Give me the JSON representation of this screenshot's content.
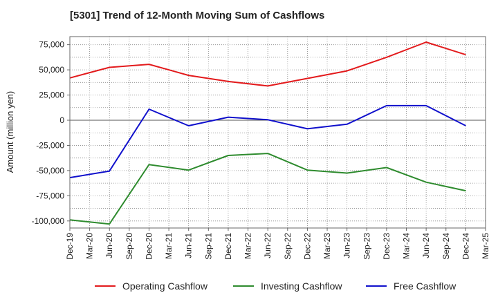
{
  "chart_data": {
    "type": "line",
    "title": "[5301]  Trend of 12-Month Moving Sum of Cashflows",
    "ylabel": "Amount (million yen)",
    "xlabel": "",
    "x": [
      "Dec-19",
      "Mar-20",
      "Jun-20",
      "Sep-20",
      "Dec-20",
      "Mar-21",
      "Jun-21",
      "Sep-21",
      "Dec-21",
      "Mar-22",
      "Jun-22",
      "Sep-22",
      "Dec-22",
      "Mar-23",
      "Jun-23",
      "Sep-23",
      "Dec-23",
      "Mar-24",
      "Jun-24",
      "Sep-24",
      "Dec-24",
      "Mar-25"
    ],
    "ylim": [
      -107000,
      83000
    ],
    "yticks": [
      75000,
      50000,
      25000,
      0,
      -25000,
      -50000,
      -75000,
      -100000
    ],
    "ytick_labels": [
      "75,000",
      "50,000",
      "25,000",
      "0",
      "-25,000",
      "-50,000",
      "-75,000",
      "-100,000"
    ],
    "grid": true,
    "legend_position": "bottom",
    "series": [
      {
        "name": "Operating Cashflow",
        "color": "#e31a1c",
        "x": [
          "Dec-19",
          "Jun-20",
          "Dec-20",
          "Jun-21",
          "Dec-21",
          "Jun-22",
          "Dec-22",
          "Jun-23",
          "Dec-23",
          "Jun-24",
          "Dec-24"
        ],
        "values": [
          42000,
          52500,
          55500,
          44500,
          38500,
          34000,
          41500,
          49000,
          62500,
          77500,
          65000
        ]
      },
      {
        "name": "Investing Cashflow",
        "color": "#2e8b2e",
        "x": [
          "Dec-19",
          "Jun-20",
          "Dec-20",
          "Jun-21",
          "Dec-21",
          "Jun-22",
          "Dec-22",
          "Jun-23",
          "Dec-23",
          "Jun-24",
          "Dec-24"
        ],
        "values": [
          -99000,
          -103000,
          -44000,
          -49500,
          -35000,
          -33000,
          -49500,
          -52500,
          -47000,
          -61500,
          -70000
        ]
      },
      {
        "name": "Free Cashflow",
        "color": "#1010cc",
        "x": [
          "Dec-19",
          "Jun-20",
          "Dec-20",
          "Jun-21",
          "Dec-21",
          "Jun-22",
          "Dec-22",
          "Jun-23",
          "Dec-23",
          "Jun-24",
          "Dec-24"
        ],
        "values": [
          -57000,
          -50500,
          11000,
          -5500,
          3000,
          500,
          -8500,
          -4000,
          14500,
          14500,
          -5500
        ]
      }
    ]
  }
}
